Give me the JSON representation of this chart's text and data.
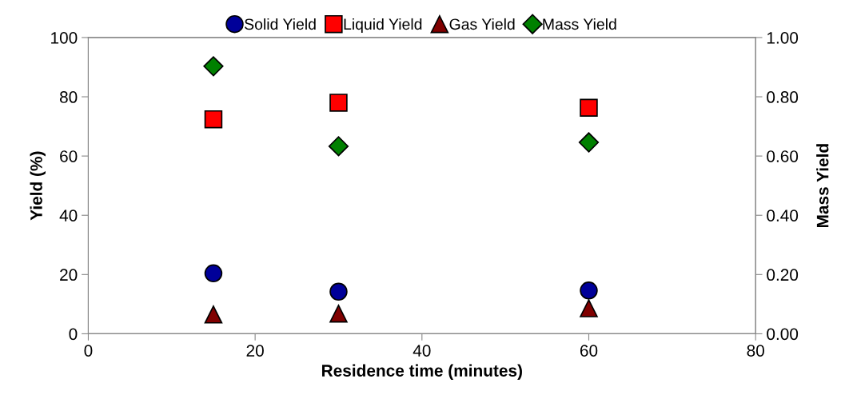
{
  "chart_data": {
    "type": "scatter",
    "xlabel": "Residence time (minutes)",
    "ylabel": "Yield (%)",
    "y2label": "Mass Yield",
    "x": [
      15,
      30,
      60
    ],
    "series": [
      {
        "name": "Solid Yield",
        "color": "#000099",
        "marker": "circle",
        "values": [
          20.4,
          14.2,
          14.6
        ]
      },
      {
        "name": "Liquid Yield",
        "color": "#ff0000",
        "marker": "square",
        "values": [
          72.4,
          78.0,
          76.3
        ]
      },
      {
        "name": "Gas Yield",
        "color": "#800000",
        "marker": "triangle",
        "values": [
          6.5,
          6.8,
          8.6
        ]
      },
      {
        "name": "Mass Yield",
        "color": "#008000",
        "marker": "diamond",
        "axis": "y2",
        "values": [
          0.903,
          0.633,
          0.646
        ]
      }
    ],
    "xlim": [
      0,
      80
    ],
    "xticks": [
      0,
      20,
      40,
      60,
      80
    ],
    "ylim": [
      0,
      100
    ],
    "yticks": [
      0,
      20,
      40,
      60,
      80,
      100
    ],
    "y2lim": [
      0,
      1
    ],
    "y2ticks": [
      {
        "value": 0,
        "label": "0.00"
      },
      {
        "value": 0.2,
        "label": "0.20"
      },
      {
        "value": 0.4,
        "label": "0.40"
      },
      {
        "value": 0.6,
        "label": "0.60"
      },
      {
        "value": 0.8,
        "label": "0.80"
      },
      {
        "value": 1,
        "label": "1.00"
      }
    ],
    "legend": "top",
    "grid": false
  }
}
